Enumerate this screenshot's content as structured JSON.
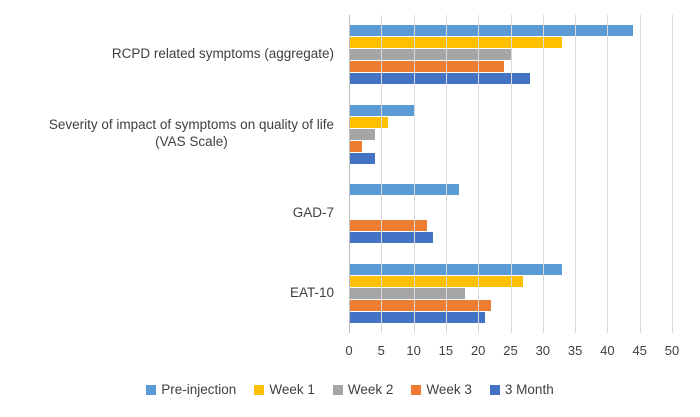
{
  "chart_data": {
    "type": "bar",
    "orientation": "horizontal",
    "title": "",
    "xlabel": "",
    "ylabel": "",
    "xlim": [
      0,
      50
    ],
    "xticks": [
      0,
      5,
      10,
      15,
      20,
      25,
      30,
      35,
      40,
      45,
      50
    ],
    "grid": "vertical",
    "legend_position": "bottom",
    "categories": [
      {
        "label": "RCPD related symptoms (aggregate)",
        "lines": [
          "RCPD related symptoms (aggregate)"
        ]
      },
      {
        "label": "Severity of impact of symptoms on quality of life (VAS Scale)",
        "lines": [
          "Severity of impact of symptoms on quality of life",
          "(VAS Scale)"
        ]
      },
      {
        "label": "GAD-7",
        "lines": [
          "GAD-7"
        ]
      },
      {
        "label": "EAT-10",
        "lines": [
          "EAT-10"
        ]
      }
    ],
    "series": [
      {
        "name": "Pre-injection",
        "color": "#5B9BD5",
        "values": [
          44,
          10,
          17,
          33
        ]
      },
      {
        "name": "Week 1",
        "color": "#FFC000",
        "values": [
          33,
          6,
          0,
          27
        ]
      },
      {
        "name": "Week 2",
        "color": "#A5A5A5",
        "values": [
          25,
          4,
          0,
          18
        ]
      },
      {
        "name": "Week 3",
        "color": "#ED7D31",
        "values": [
          24,
          2,
          12,
          22
        ]
      },
      {
        "name": "3 Month",
        "color": "#4472C4",
        "values": [
          28,
          4,
          13,
          21
        ]
      }
    ],
    "style": {
      "background": "#FFFFFF",
      "gridline_color": "#D9D9D9",
      "axis_line_color": "#BFBFBF",
      "text_color": "#404040"
    }
  }
}
